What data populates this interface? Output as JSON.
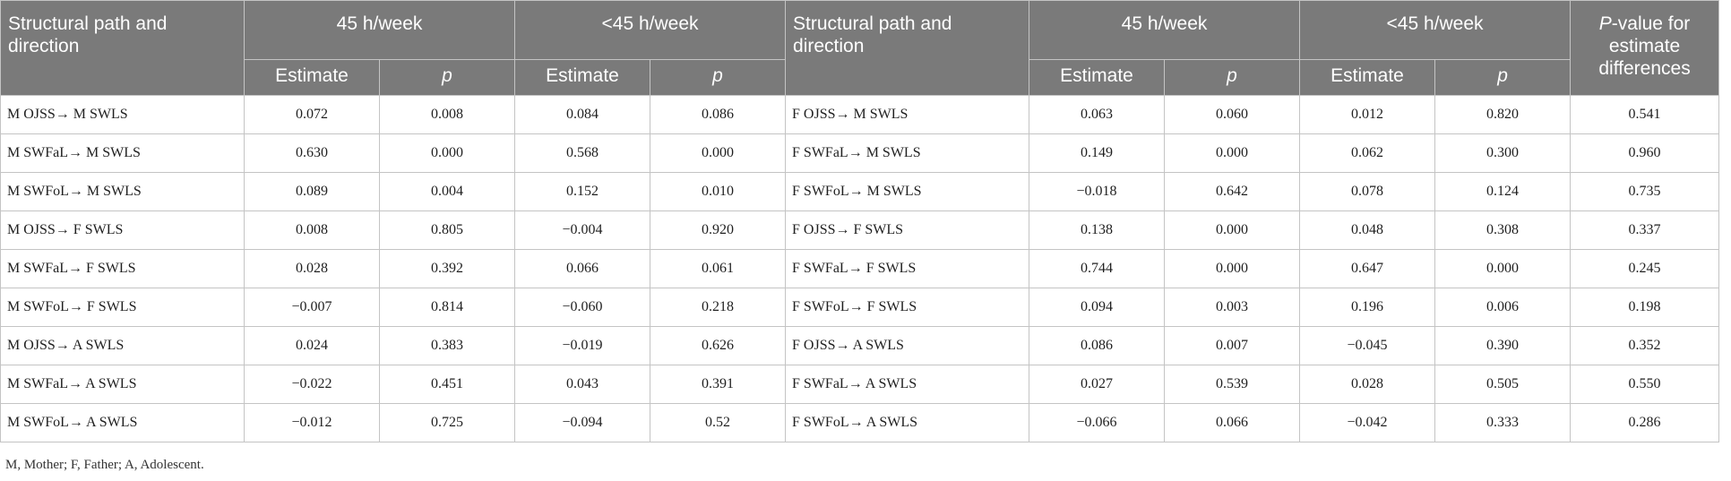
{
  "header": {
    "col_path": "Structural path and direction",
    "group_45": "45 h/week",
    "group_lt45": "<45 h/week",
    "pvalue_italic": "P",
    "pvalue_rest": "-value for estimate differences",
    "estimate": "Estimate",
    "p": "p"
  },
  "rows": [
    {
      "m_path": "M OJSS→ M SWLS",
      "m45_est": "0.072",
      "m45_p": "0.008",
      "mlt_est": "0.084",
      "mlt_p": "0.086",
      "f_path": "F OJSS→ M SWLS",
      "f45_est": "0.063",
      "f45_p": "0.060",
      "flt_est": "0.012",
      "flt_p": "0.820",
      "pdiff": "0.541"
    },
    {
      "m_path": "M SWFaL→ M SWLS",
      "m45_est": "0.630",
      "m45_p": "0.000",
      "mlt_est": "0.568",
      "mlt_p": "0.000",
      "f_path": "F SWFaL→ M SWLS",
      "f45_est": "0.149",
      "f45_p": "0.000",
      "flt_est": "0.062",
      "flt_p": "0.300",
      "pdiff": "0.960"
    },
    {
      "m_path": "M SWFoL→ M SWLS",
      "m45_est": "0.089",
      "m45_p": "0.004",
      "mlt_est": "0.152",
      "mlt_p": "0.010",
      "f_path": "F SWFoL→ M SWLS",
      "f45_est": "−0.018",
      "f45_p": "0.642",
      "flt_est": "0.078",
      "flt_p": "0.124",
      "pdiff": "0.735"
    },
    {
      "m_path": "M OJSS→ F SWLS",
      "m45_est": "0.008",
      "m45_p": "0.805",
      "mlt_est": "−0.004",
      "mlt_p": "0.920",
      "f_path": "F OJSS→ F SWLS",
      "f45_est": "0.138",
      "f45_p": "0.000",
      "flt_est": "0.048",
      "flt_p": "0.308",
      "pdiff": "0.337"
    },
    {
      "m_path": "M SWFaL→ F SWLS",
      "m45_est": "0.028",
      "m45_p": "0.392",
      "mlt_est": "0.066",
      "mlt_p": "0.061",
      "f_path": "F SWFaL→ F SWLS",
      "f45_est": "0.744",
      "f45_p": "0.000",
      "flt_est": "0.647",
      "flt_p": "0.000",
      "pdiff": "0.245"
    },
    {
      "m_path": "M SWFoL→ F SWLS",
      "m45_est": "−0.007",
      "m45_p": "0.814",
      "mlt_est": "−0.060",
      "mlt_p": "0.218",
      "f_path": "F SWFoL→ F SWLS",
      "f45_est": "0.094",
      "f45_p": "0.003",
      "flt_est": "0.196",
      "flt_p": "0.006",
      "pdiff": "0.198"
    },
    {
      "m_path": "M OJSS→ A SWLS",
      "m45_est": "0.024",
      "m45_p": "0.383",
      "mlt_est": "−0.019",
      "mlt_p": "0.626",
      "f_path": "F OJSS→ A SWLS",
      "f45_est": "0.086",
      "f45_p": "0.007",
      "flt_est": "−0.045",
      "flt_p": "0.390",
      "pdiff": "0.352"
    },
    {
      "m_path": "M SWFaL→ A SWLS",
      "m45_est": "−0.022",
      "m45_p": "0.451",
      "mlt_est": "0.043",
      "mlt_p": "0.391",
      "f_path": "F SWFaL→ A SWLS",
      "f45_est": "0.027",
      "f45_p": "0.539",
      "flt_est": "0.028",
      "flt_p": "0.505",
      "pdiff": "0.550"
    },
    {
      "m_path": "M SWFoL→ A SWLS",
      "m45_est": "−0.012",
      "m45_p": "0.725",
      "mlt_est": "−0.094",
      "mlt_p": "0.52",
      "f_path": "F SWFoL→ A SWLS",
      "f45_est": "−0.066",
      "f45_p": "0.066",
      "flt_est": "−0.042",
      "flt_p": "0.333",
      "pdiff": "0.286"
    }
  ],
  "footnote": "M, Mother; F, Father; A, Adolescent."
}
